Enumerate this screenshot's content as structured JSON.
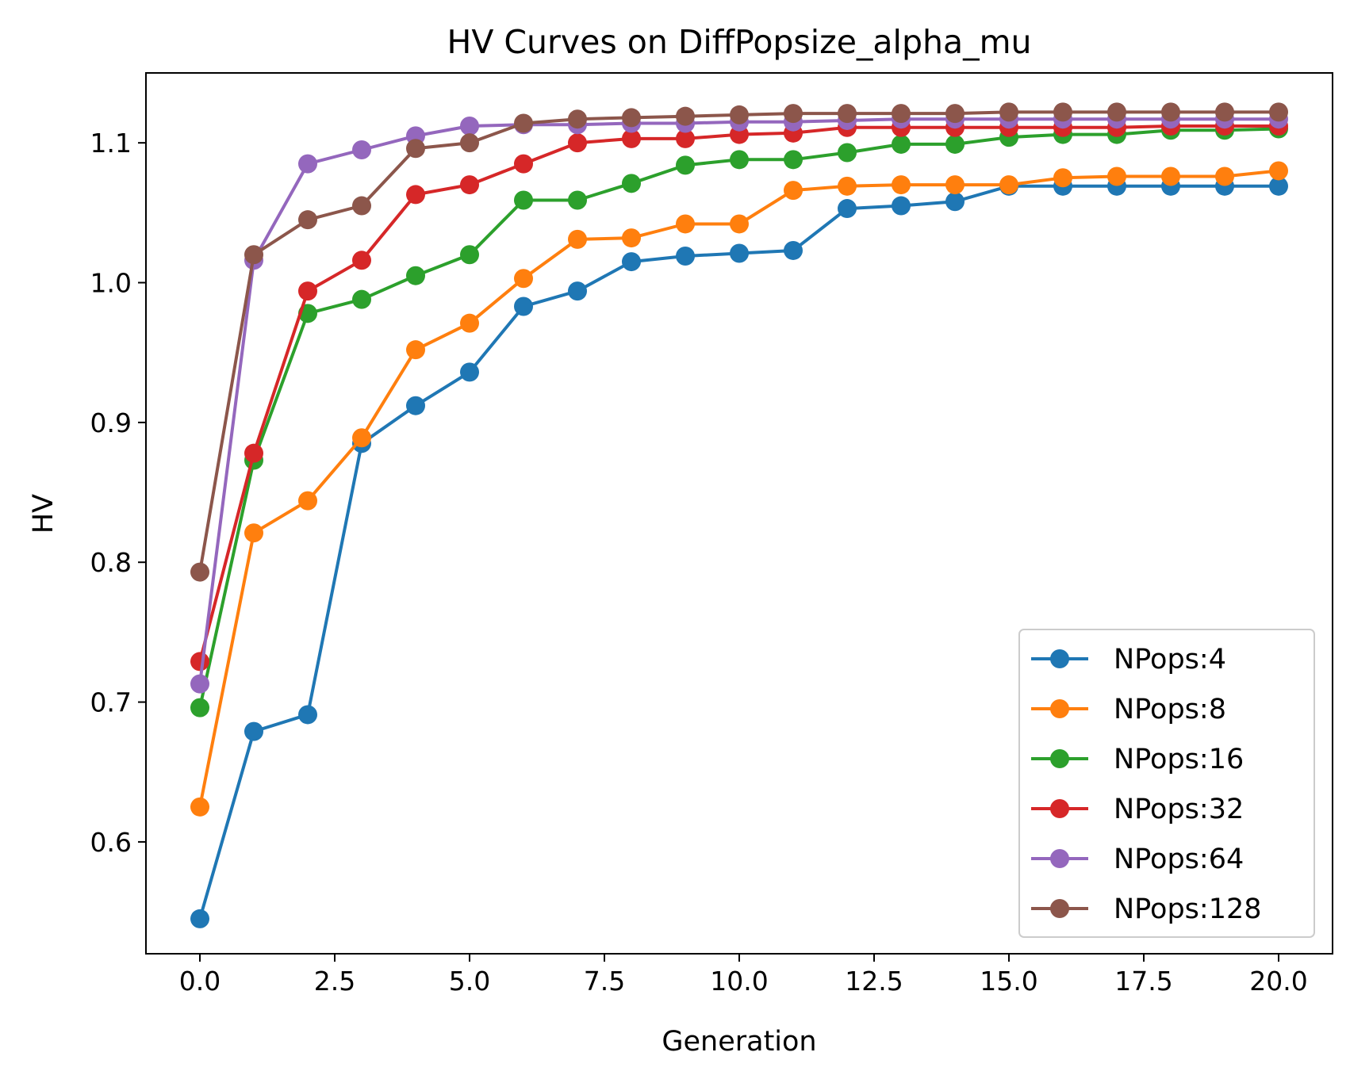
{
  "chart_data": {
    "type": "line",
    "title": "HV Curves on DiffPopsize_alpha_mu",
    "xlabel": "Generation",
    "ylabel": "HV",
    "xlim": [
      -1,
      21
    ],
    "ylim": [
      0.52,
      1.15
    ],
    "xticks": [
      0.0,
      2.5,
      5.0,
      7.5,
      10.0,
      12.5,
      15.0,
      17.5,
      20.0
    ],
    "xtick_labels": [
      "0.0",
      "2.5",
      "5.0",
      "7.5",
      "10.0",
      "12.5",
      "15.0",
      "17.5",
      "20.0"
    ],
    "yticks": [
      0.6,
      0.7,
      0.8,
      0.9,
      1.0,
      1.1
    ],
    "ytick_labels": [
      "0.6",
      "0.7",
      "0.8",
      "0.9",
      "1.0",
      "1.1"
    ],
    "grid": false,
    "legend_position": "lower-right",
    "x": [
      0,
      1,
      2,
      3,
      4,
      5,
      6,
      7,
      8,
      9,
      10,
      11,
      12,
      13,
      14,
      15,
      16,
      17,
      18,
      19,
      20
    ],
    "series": [
      {
        "name": "NPops:4",
        "color": "#1f77b4",
        "values": [
          0.545,
          0.679,
          0.691,
          0.885,
          0.912,
          0.936,
          0.983,
          0.994,
          1.015,
          1.019,
          1.021,
          1.023,
          1.053,
          1.055,
          1.058,
          1.069,
          1.069,
          1.069,
          1.069,
          1.069,
          1.069
        ]
      },
      {
        "name": "NPops:8",
        "color": "#ff7f0e",
        "values": [
          0.625,
          0.821,
          0.844,
          0.889,
          0.952,
          0.971,
          1.003,
          1.031,
          1.032,
          1.042,
          1.042,
          1.066,
          1.069,
          1.07,
          1.07,
          1.07,
          1.075,
          1.076,
          1.076,
          1.076,
          1.08
        ]
      },
      {
        "name": "NPops:16",
        "color": "#2ca02c",
        "values": [
          0.696,
          0.873,
          0.978,
          0.988,
          1.005,
          1.02,
          1.059,
          1.059,
          1.071,
          1.084,
          1.088,
          1.088,
          1.093,
          1.099,
          1.099,
          1.104,
          1.106,
          1.106,
          1.109,
          1.109,
          1.11
        ]
      },
      {
        "name": "NPops:32",
        "color": "#d62728",
        "values": [
          0.729,
          0.878,
          0.994,
          1.016,
          1.063,
          1.07,
          1.085,
          1.1,
          1.103,
          1.103,
          1.106,
          1.107,
          1.111,
          1.111,
          1.111,
          1.111,
          1.111,
          1.111,
          1.112,
          1.112,
          1.112
        ]
      },
      {
        "name": "NPops:64",
        "color": "#9467bd",
        "values": [
          0.713,
          1.016,
          1.085,
          1.095,
          1.105,
          1.112,
          1.113,
          1.113,
          1.114,
          1.114,
          1.115,
          1.115,
          1.116,
          1.117,
          1.117,
          1.117,
          1.117,
          1.117,
          1.117,
          1.117,
          1.117
        ]
      },
      {
        "name": "NPops:128",
        "color": "#8c564b",
        "values": [
          0.793,
          1.02,
          1.045,
          1.055,
          1.096,
          1.1,
          1.114,
          1.117,
          1.118,
          1.119,
          1.12,
          1.121,
          1.121,
          1.121,
          1.121,
          1.122,
          1.122,
          1.122,
          1.122,
          1.122,
          1.122
        ]
      }
    ]
  }
}
